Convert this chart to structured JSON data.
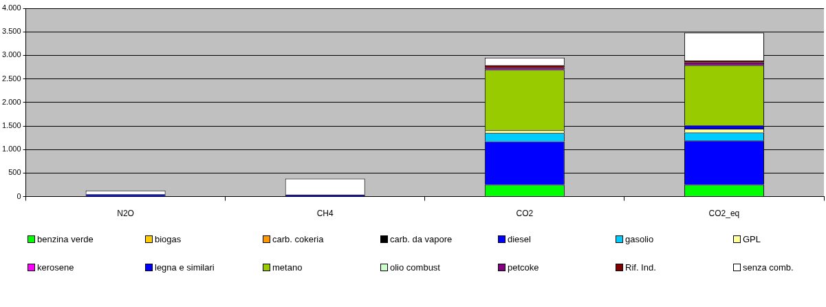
{
  "chart_data": {
    "type": "bar",
    "stacked": true,
    "categories": [
      "N2O",
      "CH4",
      "CO2",
      "CO2_eq"
    ],
    "series": [
      {
        "name": "benzina verde",
        "color": "#00ff00",
        "values": [
          null,
          null,
          250,
          250
        ]
      },
      {
        "name": "biogas",
        "color": "#ffcc00",
        "values": [
          null,
          null,
          null,
          null
        ]
      },
      {
        "name": "carb. cokeria",
        "color": "#ff9900",
        "values": [
          null,
          null,
          null,
          null
        ]
      },
      {
        "name": "carb. da vapore",
        "color": "#000000",
        "values": [
          null,
          null,
          null,
          null
        ]
      },
      {
        "name": "diesel",
        "color": "#0000ff",
        "values": [
          null,
          null,
          920,
          940
        ]
      },
      {
        "name": "gasolio",
        "color": "#00ccff",
        "values": [
          null,
          null,
          180,
          170
        ]
      },
      {
        "name": "GPL",
        "color": "#ffff99",
        "values": [
          null,
          null,
          60,
          80
        ]
      },
      {
        "name": "kerosene",
        "color": "#ff00ff",
        "values": [
          null,
          null,
          null,
          null
        ]
      },
      {
        "name": "legna e similari",
        "color": "#0000ff",
        "values": [
          50,
          40,
          null,
          70
        ]
      },
      {
        "name": "metano",
        "color": "#99cc00",
        "values": [
          null,
          null,
          1280,
          1280
        ]
      },
      {
        "name": "olio combust",
        "color": "#ccffcc",
        "values": [
          null,
          null,
          null,
          null
        ]
      },
      {
        "name": "petcoke",
        "color": "#800080",
        "values": [
          null,
          null,
          50,
          60
        ]
      },
      {
        "name": "Rif. Ind.",
        "color": "#800000",
        "values": [
          null,
          null,
          50,
          40
        ]
      },
      {
        "name": "senza comb.",
        "color": "#ffffff",
        "values": [
          80,
          340,
          160,
          590
        ]
      }
    ],
    "ylim": [
      0,
      4000
    ],
    "yticks": [
      {
        "value": 0,
        "label": "0"
      },
      {
        "value": 500,
        "label": "500"
      },
      {
        "value": 1000,
        "label": "1.000"
      },
      {
        "value": 1500,
        "label": "1.500"
      },
      {
        "value": 2000,
        "label": "2.000"
      },
      {
        "value": 2500,
        "label": "2.500"
      },
      {
        "value": 3000,
        "label": "3.000"
      },
      {
        "value": 3500,
        "label": "3.500"
      },
      {
        "value": 4000,
        "label": "4.000"
      }
    ],
    "grid": "y",
    "legend": "bottom"
  }
}
